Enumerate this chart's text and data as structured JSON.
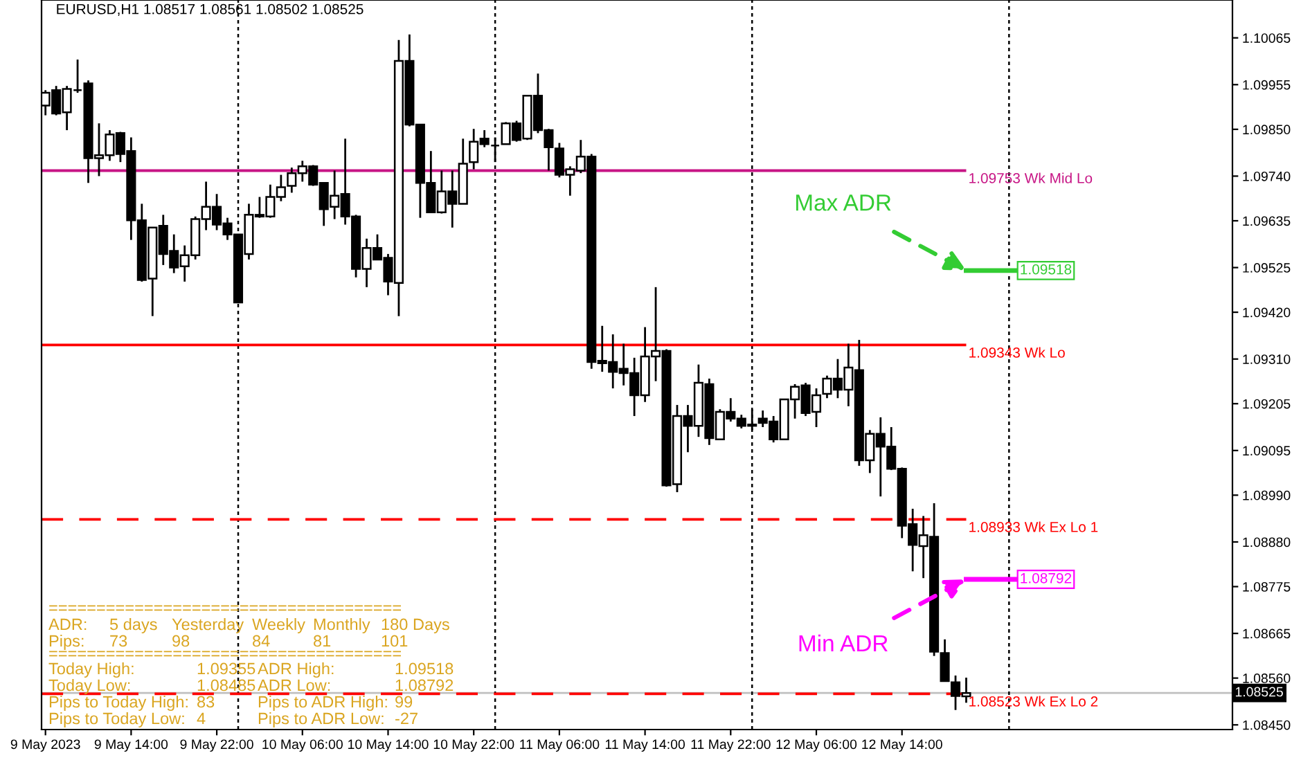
{
  "chart_data": {
    "type": "candlestick",
    "title": "EURUSD,H1 1.08517 1.08561 1.08502 1.08525",
    "x": [
      "2023-05-09T06:00",
      "2023-05-09T07:00",
      "2023-05-09T08:00",
      "2023-05-09T09:00",
      "2023-05-09T10:00",
      "2023-05-09T11:00",
      "2023-05-09T12:00",
      "2023-05-09T13:00",
      "2023-05-09T14:00",
      "2023-05-09T15:00",
      "2023-05-09T16:00",
      "2023-05-09T17:00",
      "2023-05-09T18:00",
      "2023-05-09T19:00",
      "2023-05-09T20:00",
      "2023-05-09T21:00",
      "2023-05-09T22:00",
      "2023-05-09T23:00",
      "2023-05-10T00:00",
      "2023-05-10T01:00",
      "2023-05-10T02:00",
      "2023-05-10T03:00",
      "2023-05-10T04:00",
      "2023-05-10T05:00",
      "2023-05-10T06:00",
      "2023-05-10T07:00",
      "2023-05-10T08:00",
      "2023-05-10T09:00",
      "2023-05-10T10:00",
      "2023-05-10T11:00",
      "2023-05-10T12:00",
      "2023-05-10T13:00",
      "2023-05-10T14:00",
      "2023-05-10T15:00",
      "2023-05-10T16:00",
      "2023-05-10T17:00",
      "2023-05-10T18:00",
      "2023-05-10T19:00",
      "2023-05-10T20:00",
      "2023-05-10T21:00",
      "2023-05-10T22:00",
      "2023-05-10T23:00",
      "2023-05-11T00:00",
      "2023-05-11T01:00",
      "2023-05-11T02:00",
      "2023-05-11T03:00",
      "2023-05-11T04:00",
      "2023-05-11T05:00",
      "2023-05-11T06:00",
      "2023-05-11T07:00",
      "2023-05-11T08:00",
      "2023-05-11T09:00",
      "2023-05-11T10:00",
      "2023-05-11T11:00",
      "2023-05-11T12:00",
      "2023-05-11T13:00",
      "2023-05-11T14:00",
      "2023-05-11T15:00",
      "2023-05-11T16:00",
      "2023-05-11T17:00",
      "2023-05-11T18:00",
      "2023-05-11T19:00",
      "2023-05-11T20:00",
      "2023-05-11T21:00",
      "2023-05-11T22:00",
      "2023-05-11T23:00",
      "2023-05-12T00:00",
      "2023-05-12T01:00",
      "2023-05-12T02:00",
      "2023-05-12T03:00",
      "2023-05-12T04:00",
      "2023-05-12T05:00",
      "2023-05-12T06:00",
      "2023-05-12T07:00",
      "2023-05-12T08:00",
      "2023-05-12T09:00",
      "2023-05-12T10:00",
      "2023-05-12T11:00",
      "2023-05-12T12:00",
      "2023-05-12T13:00",
      "2023-05-12T14:00",
      "2023-05-12T15:00",
      "2023-05-12T16:00",
      "2023-05-12T17:00",
      "2023-05-12T18:00",
      "2023-05-12T19:00",
      "2023-05-12T20:00"
    ],
    "ohlc": [
      [
        1.09906,
        1.09942,
        1.09883,
        1.09936
      ],
      [
        1.09942,
        1.09952,
        1.09883,
        1.09887
      ],
      [
        1.0989,
        1.09952,
        1.09848,
        1.09945
      ],
      [
        1.09942,
        1.10014,
        1.09936,
        1.09942
      ],
      [
        1.09958,
        1.09965,
        1.09724,
        1.09782
      ],
      [
        1.09782,
        1.09864,
        1.0974,
        1.09789
      ],
      [
        1.09789,
        1.09848,
        1.09776,
        1.09838
      ],
      [
        1.09841,
        1.09844,
        1.09773,
        1.09792
      ],
      [
        1.09799,
        1.09831,
        1.0959,
        1.09636
      ],
      [
        1.09636,
        1.09675,
        1.09492,
        1.09496
      ],
      [
        1.09499,
        1.09619,
        1.09411,
        1.09619
      ],
      [
        1.09623,
        1.09649,
        1.09531,
        1.09557
      ],
      [
        1.09564,
        1.09603,
        1.09512,
        1.09525
      ],
      [
        1.09528,
        1.09577,
        1.09492,
        1.09554
      ],
      [
        1.09554,
        1.09645,
        1.09544,
        1.09639
      ],
      [
        1.09639,
        1.09727,
        1.09613,
        1.09668
      ],
      [
        1.09668,
        1.09698,
        1.09613,
        1.09626
      ],
      [
        1.09629,
        1.09642,
        1.0959,
        1.09603
      ],
      [
        1.09603,
        1.09603,
        1.09443,
        1.09443
      ],
      [
        1.09557,
        1.09675,
        1.09544,
        1.09649
      ],
      [
        1.09645,
        1.09691,
        1.09642,
        1.09649
      ],
      [
        1.09645,
        1.0972,
        1.09642,
        1.09691
      ],
      [
        1.09691,
        1.09743,
        1.09681,
        1.09714
      ],
      [
        1.09717,
        1.0976,
        1.09701,
        1.09747
      ],
      [
        1.09747,
        1.09776,
        1.09727,
        1.09763
      ],
      [
        1.09763,
        1.09766,
        1.09717,
        1.0972
      ],
      [
        1.09724,
        1.09724,
        1.09623,
        1.09662
      ],
      [
        1.09668,
        1.09753,
        1.09639,
        1.09694
      ],
      [
        1.09698,
        1.09828,
        1.09626,
        1.09645
      ],
      [
        1.09645,
        1.09649,
        1.09502,
        1.09522
      ],
      [
        1.09522,
        1.09593,
        1.09479,
        1.09571
      ],
      [
        1.09571,
        1.09603,
        1.09544,
        1.09544
      ],
      [
        1.09548,
        1.09557,
        1.0946,
        1.09492
      ],
      [
        1.09489,
        1.1006,
        1.09411,
        1.10011
      ],
      [
        1.10011,
        1.10073,
        1.09857,
        1.09861
      ],
      [
        1.09861,
        1.09861,
        1.09642,
        1.09724
      ],
      [
        1.09724,
        1.09799,
        1.09655,
        1.09655
      ],
      [
        1.09655,
        1.09753,
        1.09652,
        1.09704
      ],
      [
        1.09704,
        1.09753,
        1.09619,
        1.09675
      ],
      [
        1.09675,
        1.09828,
        1.09675,
        1.09769
      ],
      [
        1.09773,
        1.09851,
        1.09756,
        1.09821
      ],
      [
        1.09828,
        1.09848,
        1.09808,
        1.09815
      ],
      [
        1.09812,
        1.09831,
        1.09773,
        1.09812
      ],
      [
        1.09815,
        1.09867,
        1.09815,
        1.09864
      ],
      [
        1.09864,
        1.0987,
        1.09821,
        1.09825
      ],
      [
        1.09828,
        1.09929,
        1.09825,
        1.09929
      ],
      [
        1.09929,
        1.09981,
        1.09841,
        1.09848
      ],
      [
        1.09848,
        1.09851,
        1.09753,
        1.09808
      ],
      [
        1.09805,
        1.09818,
        1.09737,
        1.09743
      ],
      [
        1.09743,
        1.09763,
        1.09694,
        1.09756
      ],
      [
        1.09753,
        1.09825,
        1.09747,
        1.09786
      ],
      [
        1.09786,
        1.09792,
        1.09287,
        1.09303
      ],
      [
        1.09306,
        1.09388,
        1.0928,
        1.093
      ],
      [
        1.09303,
        1.09368,
        1.09241,
        1.0928
      ],
      [
        1.09287,
        1.09346,
        1.09248,
        1.09277
      ],
      [
        1.09277,
        1.09313,
        1.09176,
        1.09225
      ],
      [
        1.09225,
        1.09385,
        1.09209,
        1.09316
      ],
      [
        1.09316,
        1.09479,
        1.09258,
        1.09329
      ],
      [
        1.09329,
        1.09333,
        1.0901,
        1.09013
      ],
      [
        1.09016,
        1.09202,
        1.08997,
        1.09176
      ],
      [
        1.09176,
        1.09202,
        1.09091,
        1.09153
      ],
      [
        1.09153,
        1.09297,
        1.09127,
        1.09254
      ],
      [
        1.09251,
        1.09264,
        1.09108,
        1.09124
      ],
      [
        1.09121,
        1.09192,
        1.09121,
        1.09186
      ],
      [
        1.09186,
        1.09218,
        1.09163,
        1.0917
      ],
      [
        1.0917,
        1.09179,
        1.09147,
        1.09153
      ],
      [
        1.09156,
        1.09192,
        1.09143,
        1.09153
      ],
      [
        1.0917,
        1.09189,
        1.0915,
        1.0916
      ],
      [
        1.09163,
        1.09176,
        1.09114,
        1.09121
      ],
      [
        1.09121,
        1.09215,
        1.09121,
        1.09215
      ],
      [
        1.09215,
        1.09251,
        1.0917,
        1.09245
      ],
      [
        1.09248,
        1.09254,
        1.09176,
        1.09183
      ],
      [
        1.09186,
        1.09241,
        1.0915,
        1.09225
      ],
      [
        1.09228,
        1.09271,
        1.09218,
        1.09264
      ],
      [
        1.09264,
        1.0931,
        1.09218,
        1.09238
      ],
      [
        1.09238,
        1.09346,
        1.09199,
        1.0929
      ],
      [
        1.09284,
        1.09355,
        1.09059,
        1.09072
      ],
      [
        1.09072,
        1.09143,
        1.09042,
        1.09134
      ],
      [
        1.09134,
        1.09173,
        1.08987,
        1.09104
      ],
      [
        1.09104,
        1.0915,
        1.09049,
        1.09052
      ],
      [
        1.09052,
        1.09055,
        1.08889,
        1.08918
      ],
      [
        1.08922,
        1.08958,
        1.08811,
        1.08873
      ],
      [
        1.0887,
        1.08941,
        1.08795,
        1.08896
      ],
      [
        1.08892,
        1.08971,
        1.08612,
        1.08622
      ],
      [
        1.08619,
        1.08651,
        1.08553,
        1.08553
      ],
      [
        1.0855,
        1.08566,
        1.08485,
        1.08518
      ],
      [
        1.08517,
        1.08561,
        1.08502,
        1.08525
      ]
    ],
    "xlim": [
      "2023-05-09T05:38",
      "2023-05-13T20:52"
    ],
    "xticks": [
      {
        "value": "2023-05-09T06:00",
        "label": "9 May 2023"
      },
      {
        "value": "2023-05-09T14:00",
        "label": "9 May 14:00"
      },
      {
        "value": "2023-05-09T22:00",
        "label": "9 May 22:00"
      },
      {
        "value": "2023-05-10T06:00",
        "label": "10 May 06:00"
      },
      {
        "value": "2023-05-10T14:00",
        "label": "10 May 14:00"
      },
      {
        "value": "2023-05-10T22:00",
        "label": "10 May 22:00"
      },
      {
        "value": "2023-05-11T06:00",
        "label": "11 May 06:00"
      },
      {
        "value": "2023-05-11T14:00",
        "label": "11 May 14:00"
      },
      {
        "value": "2023-05-11T22:00",
        "label": "11 May 22:00"
      },
      {
        "value": "2023-05-12T06:00",
        "label": "12 May 06:00"
      },
      {
        "value": "2023-05-12T14:00",
        "label": "12 May 14:00"
      }
    ],
    "ylim": [
      1.08439,
      1.10154
    ],
    "yticks": [
      1.10065,
      1.09955,
      {
        "value": 1.0985,
        "label": "1.09850"
      },
      {
        "value": 1.0974,
        "label": "1.09740"
      },
      1.09635,
      1.09525,
      {
        "value": 1.0942,
        "label": "1.09420"
      },
      {
        "value": 1.0931,
        "label": "1.09310"
      },
      1.09205,
      1.09095,
      {
        "value": 1.0899,
        "label": "1.08990"
      },
      {
        "value": 1.0888,
        "label": "1.08880"
      },
      1.08775,
      1.08665,
      {
        "value": 1.0856,
        "label": "1.08560"
      },
      {
        "value": 1.0845,
        "label": "1.08450"
      }
    ],
    "ref_lines": [
      {
        "axis": "y",
        "value": 1.09753,
        "label": "1.09753 Wk Mid Lo",
        "color": "#c71585",
        "line_style": "solid"
      },
      {
        "axis": "y",
        "value": 1.09343,
        "label": "1.09343 Wk Lo",
        "color": "#ff0000",
        "line_style": "solid"
      },
      {
        "axis": "y",
        "value": 1.08933,
        "label": "1.08933 Wk Ex Lo 1",
        "color": "#ff0000",
        "line_style": "dashed"
      },
      {
        "axis": "y",
        "value": 1.08523,
        "label": "1.08523 Wk Ex Lo 2",
        "color": "#ff0000",
        "line_style": "dashed"
      },
      {
        "axis": "y",
        "value": 1.08525,
        "label": "1.08525",
        "color": "#c0c0c0",
        "line_style": "solid"
      },
      {
        "axis": "x",
        "value": "2023-05-10T00:00",
        "color": "#000000",
        "line_style": "dotted"
      },
      {
        "axis": "x",
        "value": "2023-05-11T00:00",
        "color": "#000000",
        "line_style": "dotted"
      },
      {
        "axis": "x",
        "value": "2023-05-12T00:00",
        "color": "#000000",
        "line_style": "dotted"
      },
      {
        "axis": "x",
        "value": "2023-05-13T00:00",
        "color": "#000000",
        "line_style": "dotted"
      }
    ],
    "series": [
      {
        "type": "line",
        "color": "#33cc33",
        "x": [
          "2023-05-12T20:00",
          "2023-05-13T01:00"
        ],
        "values": [
          1.09518,
          1.09518
        ],
        "value_labels": [
          null,
          "1.09518"
        ]
      },
      {
        "type": "line",
        "color": "#ff00ff",
        "x": [
          "2023-05-12T20:00",
          "2023-05-13T01:00"
        ],
        "values": [
          1.08792,
          1.08792
        ],
        "value_labels": [
          null,
          "1.08792"
        ]
      }
    ],
    "annotations": [
      {
        "text": "Max ADR",
        "x": "2023-05-12T20:00",
        "y": 1.09518
      },
      {
        "text": "Min ADR",
        "x": "2023-05-12T20:00",
        "y": 1.08792
      },
      "=====================================",
      "ADR:  5 days  Yesterday  Weekly  Monthly  180 Days",
      "Pips:  73  98  84  81  101",
      "=====================================",
      "Today High:  1.09355  ADR High:  1.09518",
      "Today Low:  1.08485  ADR Low:  1.08792",
      "Pips to Today High:  83  Pips to ADR High:  99",
      "Pips to Today Low:  4  Pips to ADR Low:  -27"
    ],
    "grid": false,
    "legend": false
  }
}
